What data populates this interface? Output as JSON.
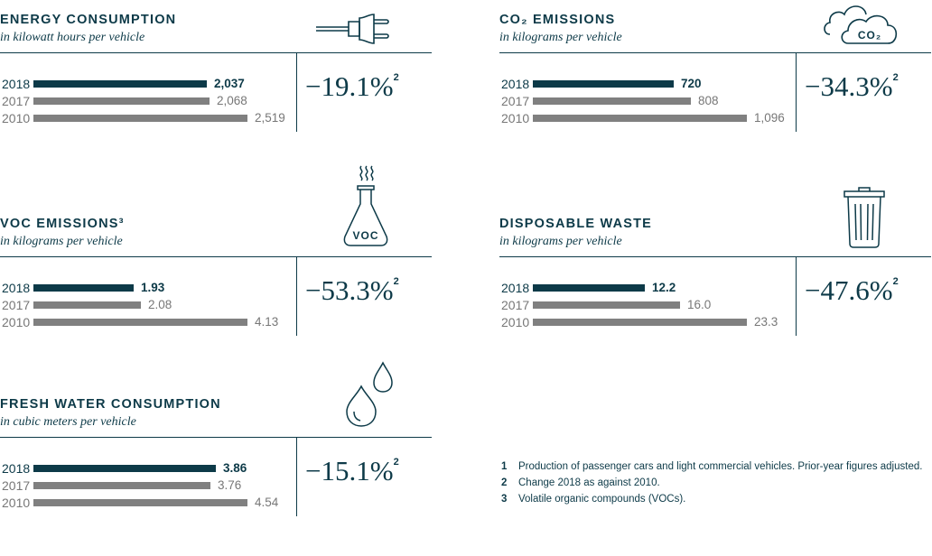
{
  "chart_data": [
    {
      "type": "bar",
      "title": "ENERGY CONSUMPTION",
      "subtitle": "in kilowatt hours per vehicle",
      "categories": [
        "2018",
        "2017",
        "2010"
      ],
      "values": [
        2037,
        2068,
        2519
      ],
      "labels": [
        "2,037",
        "2,068",
        "2,519"
      ],
      "max": 2519,
      "change": "−19.1%",
      "change_note": "2",
      "icon": "plug-icon"
    },
    {
      "type": "bar",
      "title": "CO₂ EMISSIONS",
      "subtitle": "in kilograms per vehicle",
      "categories": [
        "2018",
        "2017",
        "2010"
      ],
      "values": [
        720,
        808,
        1096
      ],
      "labels": [
        "720",
        "808",
        "1,096"
      ],
      "max": 1096,
      "change": "−34.3%",
      "change_note": "2",
      "icon": "cloud-co2-icon",
      "icon_text": "CO₂"
    },
    {
      "type": "bar",
      "title": "VOC EMISSIONS³",
      "subtitle": "in kilograms per vehicle",
      "categories": [
        "2018",
        "2017",
        "2010"
      ],
      "values": [
        1.93,
        2.08,
        4.13
      ],
      "labels": [
        "1.93",
        "2.08",
        "4.13"
      ],
      "max": 4.13,
      "change": "−53.3%",
      "change_note": "2",
      "icon": "flask-voc-icon",
      "icon_text": "VOC"
    },
    {
      "type": "bar",
      "title": "DISPOSABLE WASTE",
      "subtitle": "in kilograms per vehicle",
      "categories": [
        "2018",
        "2017",
        "2010"
      ],
      "values": [
        12.2,
        16.0,
        23.3
      ],
      "labels": [
        "12.2",
        "16.0",
        "23.3"
      ],
      "max": 23.3,
      "change": "−47.6%",
      "change_note": "2",
      "icon": "trash-bin-icon"
    },
    {
      "type": "bar",
      "title": "FRESH WATER CONSUMPTION",
      "subtitle": "in cubic meters per vehicle",
      "categories": [
        "2018",
        "2017",
        "2010"
      ],
      "values": [
        3.86,
        3.76,
        4.54
      ],
      "labels": [
        "3.86",
        "3.76",
        "4.54"
      ],
      "max": 4.54,
      "change": "−15.1%",
      "change_note": "2",
      "icon": "water-drops-icon"
    }
  ],
  "footnotes": [
    {
      "num": "1",
      "text": "Production of passenger cars and light commercial vehicles. Prior-year figures adjusted."
    },
    {
      "num": "2",
      "text": "Change 2018 as against 2010."
    },
    {
      "num": "3",
      "text": "Volatile organic compounds (VOCs)."
    }
  ],
  "colors": {
    "current_year": "#0d3a48",
    "prior_years": "#808080"
  }
}
